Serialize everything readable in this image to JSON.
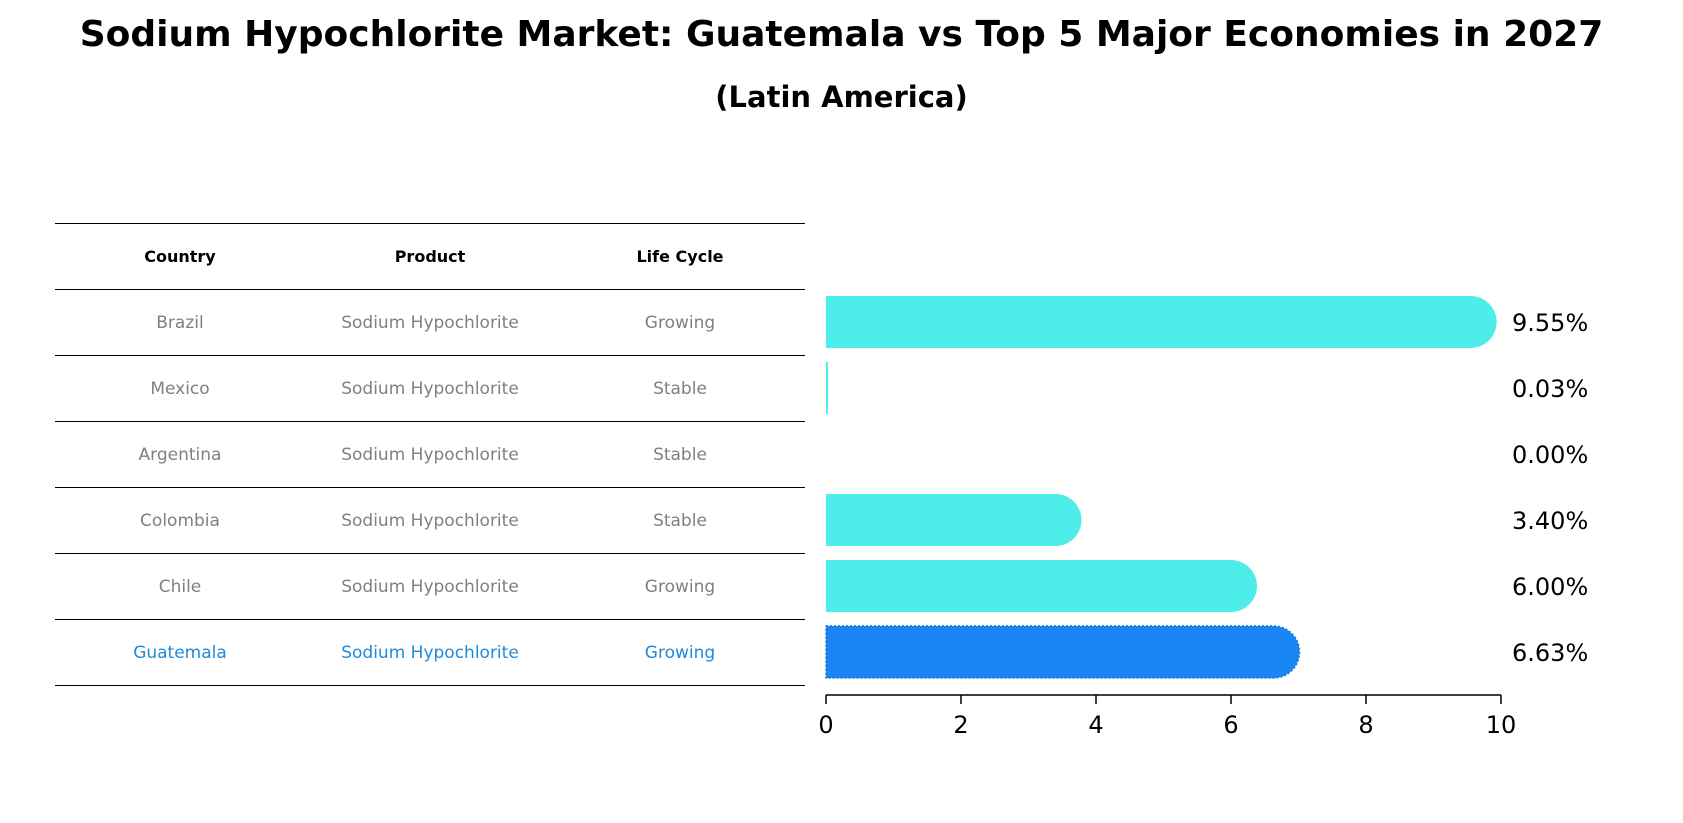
{
  "title": "Sodium Hypochlorite Market: Guatemala vs Top 5 Major Economies in 2027",
  "subtitle": "(Latin America)",
  "table": {
    "headers": [
      "Country",
      "Product",
      "Life Cycle"
    ],
    "rows": [
      [
        "Brazil",
        "Sodium Hypochlorite",
        "Growing"
      ],
      [
        "Mexico",
        "Sodium Hypochlorite",
        "Stable"
      ],
      [
        "Argentina",
        "Sodium Hypochlorite",
        "Stable"
      ],
      [
        "Colombia",
        "Sodium Hypochlorite",
        "Stable"
      ],
      [
        "Chile",
        "Sodium Hypochlorite",
        "Growing"
      ],
      [
        "Guatemala",
        "Sodium Hypochlorite",
        "Growing"
      ]
    ]
  },
  "chart_data": {
    "type": "bar",
    "orientation": "horizontal",
    "categories": [
      "Brazil",
      "Mexico",
      "Argentina",
      "Colombia",
      "Chile",
      "Guatemala"
    ],
    "values": [
      9.55,
      0.03,
      0.0,
      3.4,
      6.0,
      6.63
    ],
    "value_labels": [
      "9.55%",
      "0.03%",
      "0.00%",
      "3.40%",
      "6.00%",
      "6.63%"
    ],
    "xlim": [
      0,
      10
    ],
    "xticks": [
      0,
      2,
      4,
      6,
      8,
      10
    ],
    "highlight": "Guatemala",
    "colors": {
      "default": "#4deeea",
      "highlight": "#1a86f3"
    }
  }
}
